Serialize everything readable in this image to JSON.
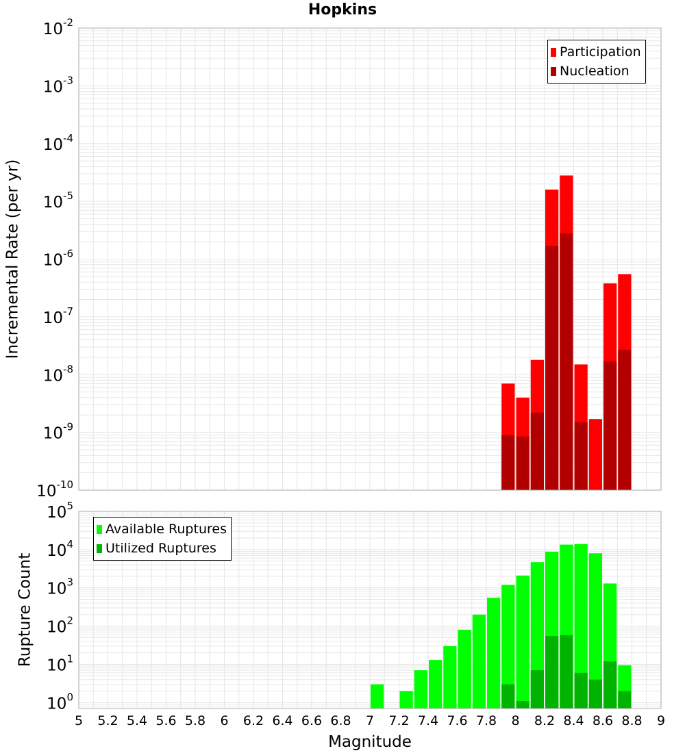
{
  "title": "Hopkins",
  "xlabel": "Magnitude",
  "colors": {
    "participation": "#ff0000",
    "nucleation": "#b20000",
    "available": "#00ff00",
    "utilized": "#00b300",
    "grid": "#e6e6e6",
    "frame": "#aaaaaa"
  },
  "chart_data": [
    {
      "type": "bar",
      "name": "rates",
      "ylabel": "Incremental Rate (per yr)",
      "yscale": "log",
      "ylim": [
        1e-10,
        0.01
      ],
      "xlim": [
        5,
        9
      ],
      "ytick_exponents": [
        -10,
        -9,
        -8,
        -7,
        -6,
        -5,
        -4,
        -3,
        -2
      ],
      "x": [
        7.95,
        8.05,
        8.15,
        8.25,
        8.35,
        8.45,
        8.55,
        8.65,
        8.75
      ],
      "bar_width": 0.1,
      "series": [
        {
          "name": "Participation",
          "values": [
            7e-09,
            4e-09,
            1.8e-08,
            1.6e-05,
            2.8e-05,
            1.5e-08,
            1.7e-09,
            3.8e-07,
            5.5e-07
          ]
        },
        {
          "name": "Nucleation",
          "values": [
            9e-10,
            8.5e-10,
            2.2e-09,
            1.7e-06,
            2.8e-06,
            1.5e-09,
            null,
            1.7e-08,
            2.7e-08
          ]
        }
      ],
      "legend_position": "top-right",
      "grid": true
    },
    {
      "type": "bar",
      "name": "counts",
      "ylabel": "Rupture Count",
      "yscale": "log",
      "ylim": [
        0.7,
        100000
      ],
      "xlim": [
        5,
        9
      ],
      "ytick_exponents": [
        0,
        1,
        2,
        3,
        4,
        5
      ],
      "x": [
        7.05,
        7.15,
        7.25,
        7.35,
        7.45,
        7.55,
        7.65,
        7.75,
        7.85,
        7.95,
        8.05,
        8.15,
        8.25,
        8.35,
        8.45,
        8.55,
        8.65,
        8.75
      ],
      "bar_width": 0.1,
      "series": [
        {
          "name": "Available Ruptures",
          "values": [
            3,
            null,
            2,
            7,
            13,
            30,
            80,
            200,
            550,
            1200,
            2100,
            4700,
            8800,
            13500,
            14000,
            8000,
            1300,
            9.5
          ]
        },
        {
          "name": "Utilized Ruptures",
          "values": [
            null,
            null,
            null,
            null,
            null,
            null,
            null,
            null,
            null,
            3,
            1.1,
            7,
            55,
            58,
            6,
            4,
            12,
            2
          ]
        }
      ],
      "legend_position": "top-left",
      "grid": true
    }
  ],
  "xticks": [
    "5",
    "5.2",
    "5.4",
    "5.6",
    "5.8",
    "6",
    "6.2",
    "6.4",
    "6.6",
    "6.8",
    "7",
    "7.2",
    "7.4",
    "7.6",
    "7.8",
    "8",
    "8.2",
    "8.4",
    "8.6",
    "8.8",
    "9"
  ]
}
